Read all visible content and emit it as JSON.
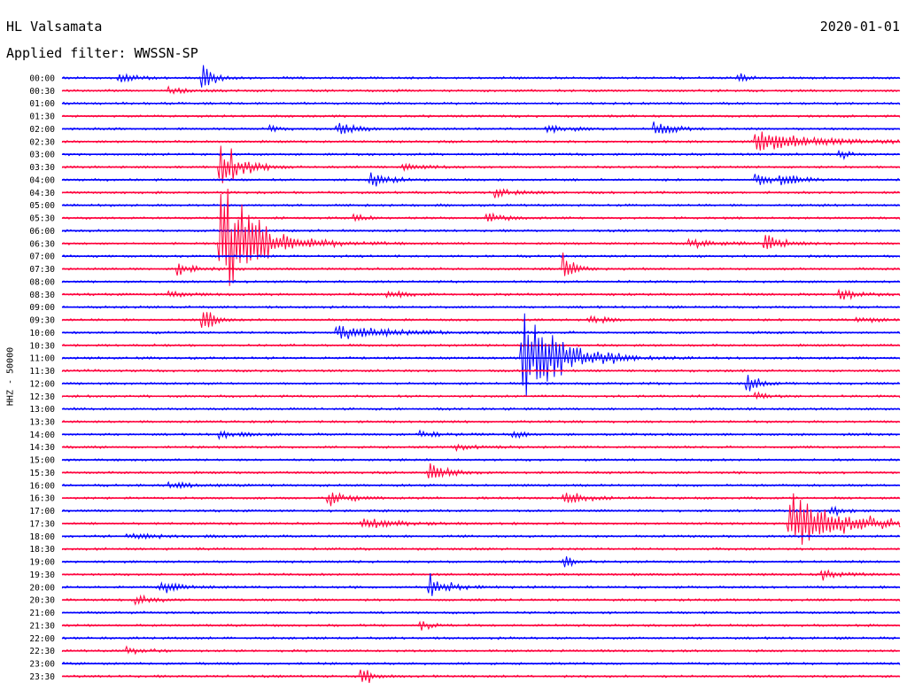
{
  "header": {
    "station": "HL Valsamata",
    "date": "2020-01-01",
    "filter": "Applied filter: WWSSN-SP"
  },
  "axis": {
    "ylabel": "HHZ - 50000"
  },
  "colors": {
    "trace_a": "#0000ff",
    "trace_b": "#ff003c",
    "background": "#ffffff"
  },
  "chart_data": {
    "type": "line",
    "title": "HL Valsamata",
    "subtitle": "Applied filter: WWSSN-SP",
    "ylabel": "HHZ - 50000",
    "date": "2020-01-01",
    "row_labels": [
      "00:00",
      "00:30",
      "01:00",
      "01:30",
      "02:00",
      "02:30",
      "03:00",
      "03:30",
      "04:00",
      "04:30",
      "05:00",
      "05:30",
      "06:00",
      "06:30",
      "07:00",
      "07:30",
      "08:00",
      "08:30",
      "09:00",
      "09:30",
      "10:00",
      "10:30",
      "11:00",
      "11:30",
      "12:00",
      "12:30",
      "13:00",
      "13:30",
      "14:00",
      "14:30",
      "15:00",
      "15:30",
      "16:00",
      "16:30",
      "17:00",
      "17:30",
      "18:00",
      "18:30",
      "19:00",
      "19:30",
      "20:00",
      "20:30",
      "21:00",
      "21:30",
      "22:00",
      "22:30",
      "23:00",
      "23:30"
    ],
    "row_colors": [
      "blue",
      "red"
    ],
    "events": [
      {
        "row": 0,
        "t": 0.07,
        "amp": 6,
        "dur": 0.02
      },
      {
        "row": 0,
        "t": 0.17,
        "amp": 22,
        "dur": 0.01
      },
      {
        "row": 0,
        "t": 0.81,
        "amp": 6,
        "dur": 0.01
      },
      {
        "row": 1,
        "t": 0.13,
        "amp": 4,
        "dur": 0.02
      },
      {
        "row": 4,
        "t": 0.25,
        "amp": 6,
        "dur": 0.01
      },
      {
        "row": 4,
        "t": 0.33,
        "amp": 10,
        "dur": 0.02
      },
      {
        "row": 4,
        "t": 0.58,
        "amp": 6,
        "dur": 0.02
      },
      {
        "row": 4,
        "t": 0.71,
        "amp": 10,
        "dur": 0.02
      },
      {
        "row": 5,
        "t": 0.83,
        "amp": 16,
        "dur": 0.06
      },
      {
        "row": 6,
        "t": 0.93,
        "amp": 6,
        "dur": 0.01
      },
      {
        "row": 7,
        "t": 0.19,
        "amp": 40,
        "dur": 0.02
      },
      {
        "row": 7,
        "t": 0.41,
        "amp": 5,
        "dur": 0.02
      },
      {
        "row": 8,
        "t": 0.37,
        "amp": 12,
        "dur": 0.02
      },
      {
        "row": 8,
        "t": 0.83,
        "amp": 8,
        "dur": 0.02
      },
      {
        "row": 8,
        "t": 0.86,
        "amp": 8,
        "dur": 0.02
      },
      {
        "row": 9,
        "t": 0.52,
        "amp": 7,
        "dur": 0.02
      },
      {
        "row": 11,
        "t": 0.35,
        "amp": 6,
        "dur": 0.01
      },
      {
        "row": 11,
        "t": 0.51,
        "amp": 6,
        "dur": 0.02
      },
      {
        "row": 13,
        "t": 0.19,
        "amp": 90,
        "dur": 0.04
      },
      {
        "row": 13,
        "t": 0.75,
        "amp": 6,
        "dur": 0.03
      },
      {
        "row": 13,
        "t": 0.84,
        "amp": 10,
        "dur": 0.02
      },
      {
        "row": 15,
        "t": 0.14,
        "amp": 8,
        "dur": 0.02
      },
      {
        "row": 15,
        "t": 0.6,
        "amp": 22,
        "dur": 0.01
      },
      {
        "row": 17,
        "t": 0.13,
        "amp": 5,
        "dur": 0.02
      },
      {
        "row": 17,
        "t": 0.39,
        "amp": 5,
        "dur": 0.02
      },
      {
        "row": 17,
        "t": 0.93,
        "amp": 7,
        "dur": 0.02
      },
      {
        "row": 19,
        "t": 0.17,
        "amp": 18,
        "dur": 0.01
      },
      {
        "row": 19,
        "t": 0.63,
        "amp": 5,
        "dur": 0.03
      },
      {
        "row": 19,
        "t": 0.95,
        "amp": 6,
        "dur": 0.02
      },
      {
        "row": 20,
        "t": 0.33,
        "amp": 10,
        "dur": 0.06
      },
      {
        "row": 22,
        "t": 0.55,
        "amp": 80,
        "dur": 0.04
      },
      {
        "row": 24,
        "t": 0.82,
        "amp": 16,
        "dur": 0.01
      },
      {
        "row": 25,
        "t": 0.83,
        "amp": 5,
        "dur": 0.01
      },
      {
        "row": 28,
        "t": 0.19,
        "amp": 5,
        "dur": 0.02
      },
      {
        "row": 28,
        "t": 0.43,
        "amp": 5,
        "dur": 0.02
      },
      {
        "row": 28,
        "t": 0.54,
        "amp": 6,
        "dur": 0.01
      },
      {
        "row": 29,
        "t": 0.47,
        "amp": 4,
        "dur": 0.03
      },
      {
        "row": 31,
        "t": 0.44,
        "amp": 14,
        "dur": 0.02
      },
      {
        "row": 32,
        "t": 0.13,
        "amp": 4,
        "dur": 0.03
      },
      {
        "row": 33,
        "t": 0.32,
        "amp": 10,
        "dur": 0.02
      },
      {
        "row": 33,
        "t": 0.6,
        "amp": 12,
        "dur": 0.02
      },
      {
        "row": 34,
        "t": 0.92,
        "amp": 8,
        "dur": 0.01
      },
      {
        "row": 35,
        "t": 0.36,
        "amp": 7,
        "dur": 0.04
      },
      {
        "row": 35,
        "t": 0.87,
        "amp": 40,
        "dur": 0.06
      },
      {
        "row": 36,
        "t": 0.08,
        "amp": 4,
        "dur": 0.03
      },
      {
        "row": 38,
        "t": 0.6,
        "amp": 10,
        "dur": 0.01
      },
      {
        "row": 39,
        "t": 0.91,
        "amp": 6,
        "dur": 0.02
      },
      {
        "row": 40,
        "t": 0.12,
        "amp": 8,
        "dur": 0.02
      },
      {
        "row": 40,
        "t": 0.44,
        "amp": 18,
        "dur": 0.02
      },
      {
        "row": 41,
        "t": 0.09,
        "amp": 6,
        "dur": 0.02
      },
      {
        "row": 43,
        "t": 0.43,
        "amp": 6,
        "dur": 0.01
      },
      {
        "row": 45,
        "t": 0.08,
        "amp": 5,
        "dur": 0.02
      },
      {
        "row": 47,
        "t": 0.36,
        "amp": 16,
        "dur": 0.01
      }
    ],
    "grid": false
  }
}
